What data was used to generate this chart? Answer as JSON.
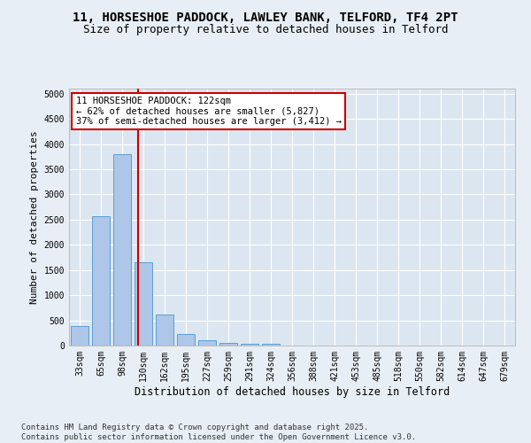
{
  "title_line1": "11, HORSESHOE PADDOCK, LAWLEY BANK, TELFORD, TF4 2PT",
  "title_line2": "Size of property relative to detached houses in Telford",
  "xlabel": "Distribution of detached houses by size in Telford",
  "ylabel": "Number of detached properties",
  "categories": [
    "33sqm",
    "65sqm",
    "98sqm",
    "130sqm",
    "162sqm",
    "195sqm",
    "227sqm",
    "259sqm",
    "291sqm",
    "324sqm",
    "356sqm",
    "388sqm",
    "421sqm",
    "453sqm",
    "485sqm",
    "518sqm",
    "550sqm",
    "582sqm",
    "614sqm",
    "647sqm",
    "679sqm"
  ],
  "values": [
    380,
    2560,
    3800,
    1650,
    620,
    235,
    100,
    55,
    40,
    30,
    5,
    0,
    0,
    0,
    0,
    0,
    0,
    0,
    0,
    0,
    0
  ],
  "bar_color": "#aec6e8",
  "bar_edgecolor": "#5a9fd4",
  "vline_color": "#cc0000",
  "vline_pos": 2.75,
  "annotation_text": "11 HORSESHOE PADDOCK: 122sqm\n← 62% of detached houses are smaller (5,827)\n37% of semi-detached houses are larger (3,412) →",
  "annotation_box_color": "#ffffff",
  "annotation_box_edgecolor": "#cc0000",
  "ylim": [
    0,
    5100
  ],
  "yticks": [
    0,
    500,
    1000,
    1500,
    2000,
    2500,
    3000,
    3500,
    4000,
    4500,
    5000
  ],
  "bg_color": "#e8eef5",
  "plot_bg_color": "#dce6f0",
  "footer_text": "Contains HM Land Registry data © Crown copyright and database right 2025.\nContains public sector information licensed under the Open Government Licence v3.0.",
  "title_fontsize": 10,
  "subtitle_fontsize": 9,
  "footer_fontsize": 6.5,
  "annotation_fontsize": 7.5,
  "tick_fontsize": 7,
  "label_fontsize": 8.5,
  "ylabel_fontsize": 8
}
